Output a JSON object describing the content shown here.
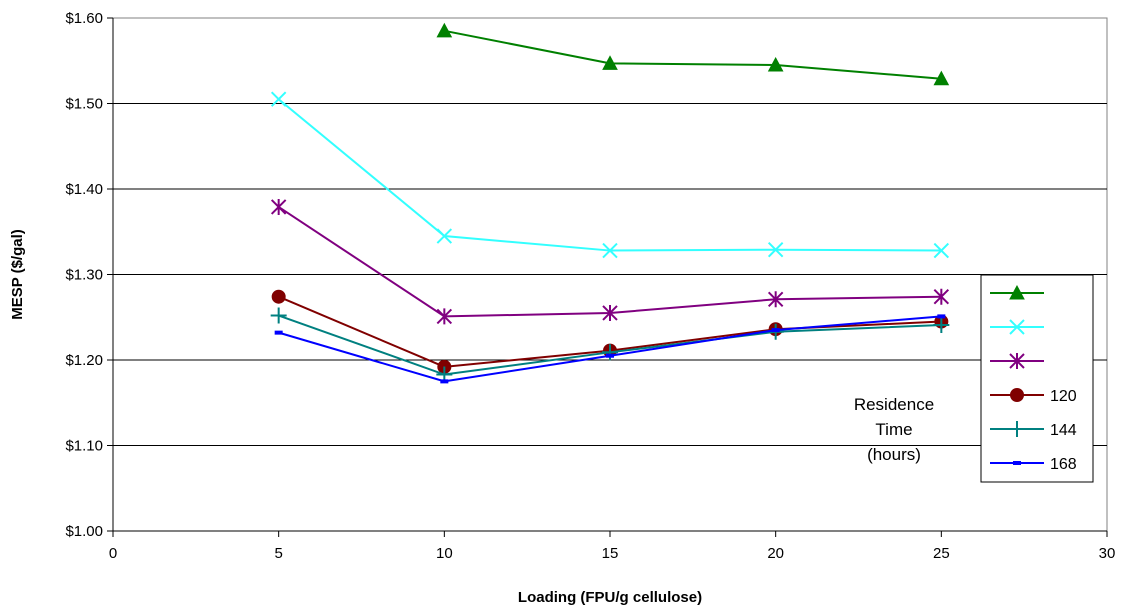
{
  "chart_data": {
    "type": "line",
    "xlabel": "Loading (FPU/g cellulose)",
    "ylabel": "MESP ($/gal)",
    "xlim": [
      0,
      30
    ],
    "ylim": [
      1.0,
      1.6
    ],
    "x_ticks": [
      "0",
      "5",
      "10",
      "15",
      "20",
      "25",
      "30"
    ],
    "y_ticks": [
      "$1.00",
      "$1.10",
      "$1.20",
      "$1.30",
      "$1.40",
      "$1.50",
      "$1.60"
    ],
    "grid": "horizontal",
    "legend_placement": "right",
    "annotation": [
      "Residence",
      "Time",
      "(hours)"
    ],
    "series": [
      {
        "name": "",
        "color": "#008000",
        "marker": "triangle",
        "x": [
          10,
          15,
          20,
          25
        ],
        "y": [
          1.585,
          1.547,
          1.545,
          1.529
        ]
      },
      {
        "name": "",
        "color": "#33FFFF",
        "marker": "x",
        "x": [
          5,
          10,
          15,
          20,
          25
        ],
        "y": [
          1.505,
          1.345,
          1.328,
          1.329,
          1.328
        ]
      },
      {
        "name": "",
        "color": "#800080",
        "marker": "asterisk",
        "x": [
          5,
          10,
          15,
          20,
          25
        ],
        "y": [
          1.379,
          1.251,
          1.255,
          1.271,
          1.274
        ]
      },
      {
        "name": "120",
        "color": "#800000",
        "marker": "circle",
        "x": [
          5,
          10,
          15,
          20,
          25
        ],
        "y": [
          1.274,
          1.192,
          1.211,
          1.236,
          1.245
        ]
      },
      {
        "name": "144",
        "color": "#008080",
        "marker": "plus",
        "x": [
          5,
          10,
          15,
          20,
          25
        ],
        "y": [
          1.252,
          1.183,
          1.209,
          1.233,
          1.241
        ]
      },
      {
        "name": "168",
        "color": "#0000FF",
        "marker": "dash",
        "x": [
          5,
          10,
          15,
          20,
          25
        ],
        "y": [
          1.232,
          1.175,
          1.205,
          1.235,
          1.251
        ]
      }
    ]
  }
}
